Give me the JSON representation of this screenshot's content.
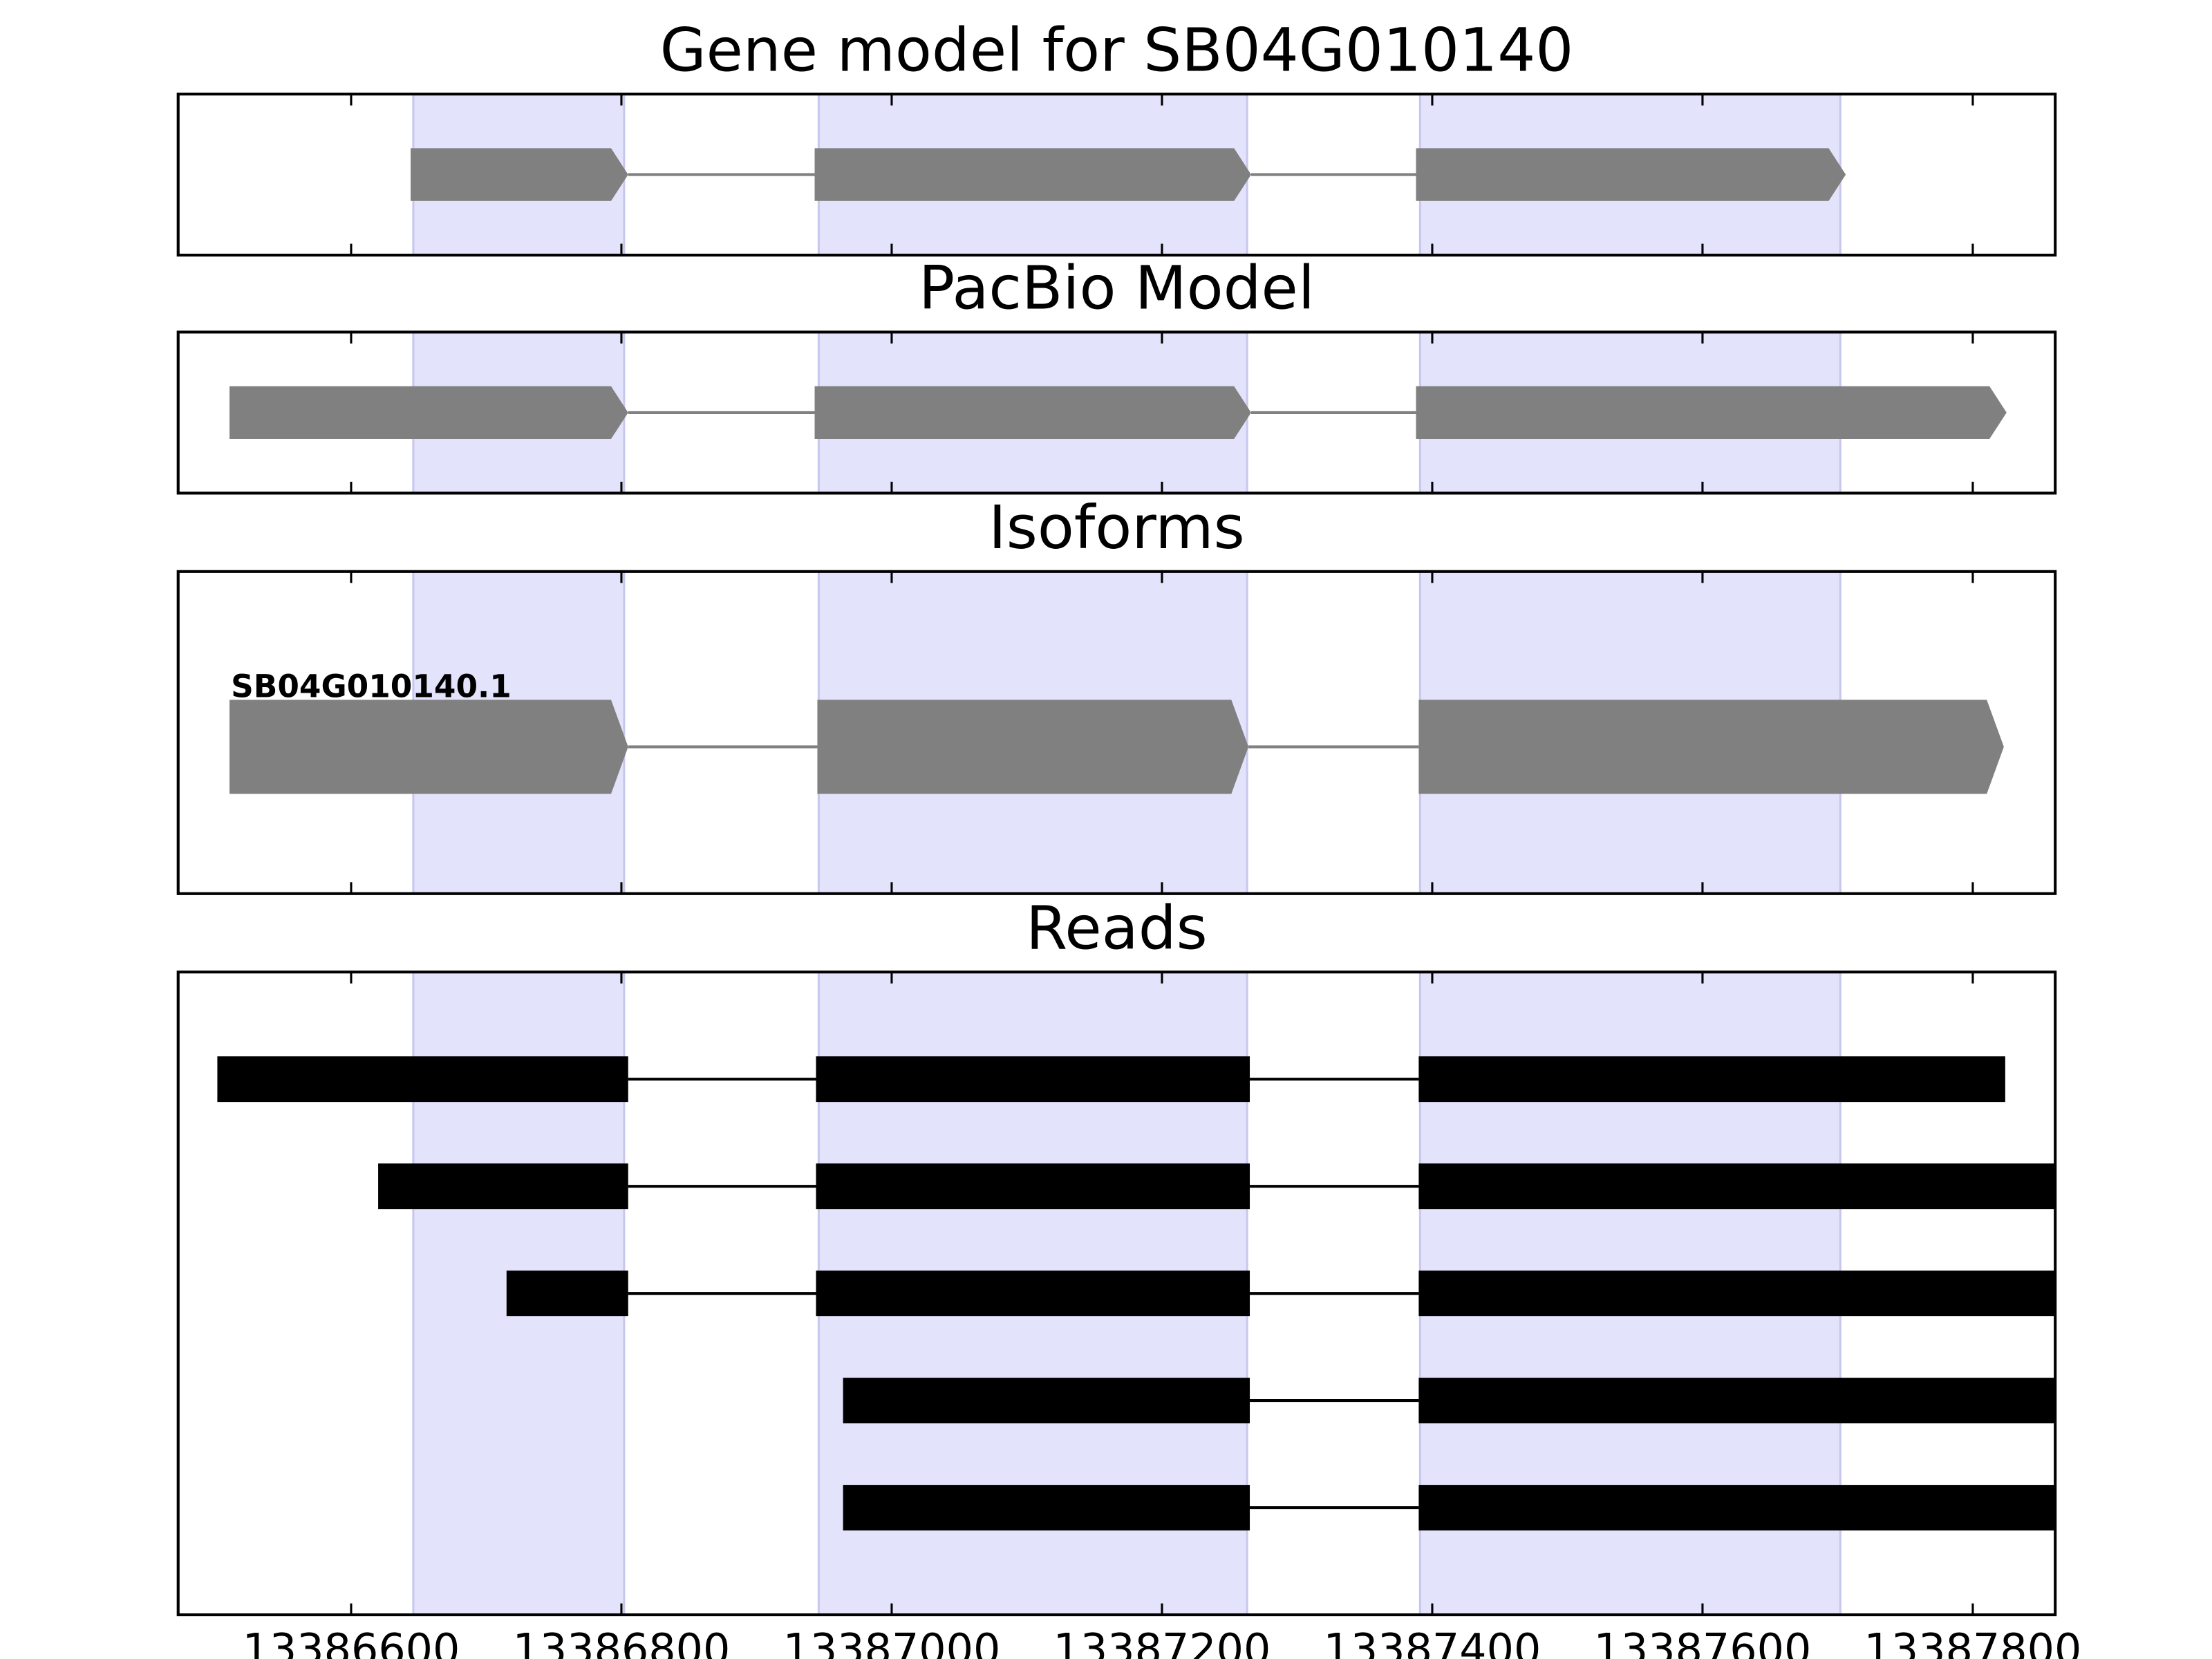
{
  "chart_data": [
    {
      "type": "gene-model",
      "title": "Gene model for SB04G010140",
      "color": "#808080",
      "strand": "+",
      "shade_color": "#e3e3fc",
      "xlim": [
        13386472,
        13387861
      ],
      "xticks": [
        13386600,
        13386800,
        13387000,
        13387200,
        13387400,
        13387600,
        13387800
      ],
      "shaded": [
        [
          13386646,
          13386802
        ],
        [
          13386946,
          13387263
        ],
        [
          13387391,
          13387702
        ]
      ],
      "series": [
        {
          "exons": [
            [
              13386644,
              13386805
            ],
            [
              13386943,
              13387266
            ],
            [
              13387388,
              13387706
            ]
          ]
        }
      ]
    },
    {
      "type": "gene-model",
      "title": "PacBio Model",
      "color": "#808080",
      "strand": "+",
      "shade_color": "#e3e3fc",
      "xlim": [
        13386472,
        13387861
      ],
      "xticks": [
        13386600,
        13386800,
        13387000,
        13387200,
        13387400,
        13387600,
        13387800
      ],
      "shaded": [
        [
          13386646,
          13386802
        ],
        [
          13386946,
          13387263
        ],
        [
          13387391,
          13387702
        ]
      ],
      "series": [
        {
          "exons": [
            [
              13386510,
              13386805
            ],
            [
              13386943,
              13387266
            ],
            [
              13387388,
              13387825
            ]
          ]
        }
      ]
    },
    {
      "type": "gene-model",
      "title": "Isoforms",
      "color": "#808080",
      "strand": "+",
      "shade_color": "#e3e3fc",
      "xlim": [
        13386472,
        13387861
      ],
      "xticks": [
        13386600,
        13386800,
        13387000,
        13387200,
        13387400,
        13387600,
        13387800
      ],
      "shaded": [
        [
          13386646,
          13386802
        ],
        [
          13386946,
          13387263
        ],
        [
          13387391,
          13387702
        ]
      ],
      "series": [
        {
          "name": "SB04G010140.1",
          "exons": [
            [
              13386510,
              13386805
            ],
            [
              13386945,
              13387264
            ],
            [
              13387390,
              13387823
            ]
          ]
        }
      ]
    },
    {
      "type": "reads",
      "title": "Reads",
      "color": "#000000",
      "shade_color": "#e3e3fc",
      "xlim": [
        13386472,
        13387861
      ],
      "xticks": [
        13386600,
        13386800,
        13387000,
        13387200,
        13387400,
        13387600,
        13387800
      ],
      "shaded": [
        [
          13386646,
          13386802
        ],
        [
          13386946,
          13387263
        ],
        [
          13387391,
          13387702
        ]
      ],
      "series": [
        {
          "exons": [
            [
              13386501,
              13386805
            ],
            [
              13386944,
              13387265
            ],
            [
              13387390,
              13387824
            ]
          ]
        },
        {
          "exons": [
            [
              13386620,
              13386805
            ],
            [
              13386944,
              13387265
            ],
            [
              13387390,
              13387900
            ]
          ]
        },
        {
          "exons": [
            [
              13386715,
              13386805
            ],
            [
              13386944,
              13387265
            ],
            [
              13387390,
              13387900
            ]
          ]
        },
        {
          "exons": [
            [
              13386964,
              13387265
            ],
            [
              13387390,
              13387900
            ]
          ]
        },
        {
          "exons": [
            [
              13386964,
              13387265
            ],
            [
              13387390,
              13387900
            ]
          ]
        }
      ]
    }
  ]
}
